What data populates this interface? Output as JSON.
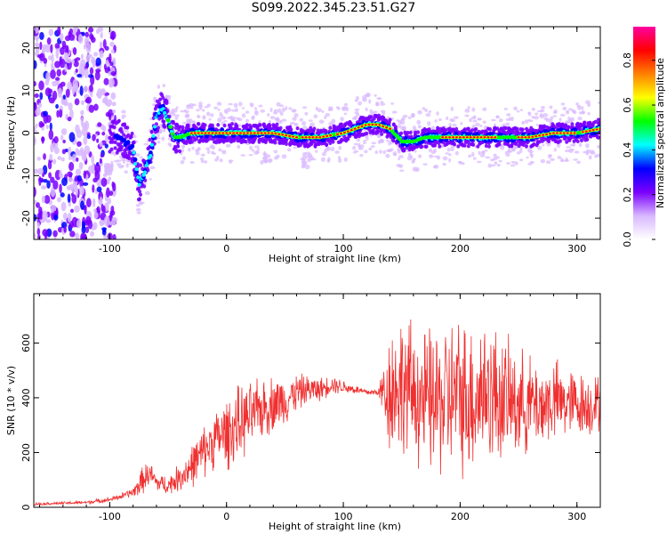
{
  "title": "S099.2022.345.23.51.G27",
  "chart_data": [
    {
      "type": "heatmap",
      "xlabel": "Height of straight line (km)",
      "ylabel": "Frequency (Hz)",
      "xlim": [
        -165,
        320
      ],
      "ylim": [
        -25,
        25
      ],
      "x_ticks": [
        -100,
        0,
        100,
        200,
        300
      ],
      "y_ticks": [
        -20,
        -10,
        0,
        10,
        20
      ],
      "colorbar": {
        "label": "Normalized spectral amplitude",
        "range": [
          0,
          0.95
        ],
        "ticks": [
          "0.0",
          "0.2",
          "0.4",
          "0.6",
          "0.8"
        ],
        "colormap": [
          "#ffffff",
          "#d8b8ff",
          "#7a00ff",
          "#0000ff",
          "#00ffff",
          "#00ff00",
          "#ffff00",
          "#ff8000",
          "#ff0000",
          "#ff00a0"
        ]
      },
      "ridge_frequency": {
        "x": [
          -90,
          -80,
          -75,
          -70,
          -65,
          -60,
          -55,
          -50,
          -45,
          -40,
          -30,
          -20,
          0,
          20,
          40,
          60,
          80,
          100,
          110,
          120,
          130,
          140,
          150,
          160,
          170,
          180,
          190,
          200,
          220,
          240,
          260,
          280,
          300,
          320
        ],
        "y": [
          -1,
          -4,
          -12,
          -9,
          -5,
          4,
          6,
          3,
          -1,
          -1,
          0,
          0,
          0,
          0,
          0,
          -1,
          -1,
          0,
          1,
          2,
          2,
          1,
          -2,
          -2,
          -1,
          -1,
          -1,
          -1,
          -1,
          -1,
          -1,
          0,
          0,
          1
        ]
      }
    },
    {
      "type": "line",
      "xlabel": "Height of straight line (km)",
      "ylabel": "SNR (10 * v/v)",
      "xlim": [
        -165,
        320
      ],
      "ylim": [
        0,
        780
      ],
      "x_ticks": [
        -100,
        0,
        100,
        200,
        300
      ],
      "y_ticks": [
        0,
        200,
        400,
        600
      ],
      "series": [
        {
          "color": "#f03030",
          "x": [
            -165,
            -140,
            -120,
            -100,
            -90,
            -80,
            -75,
            -70,
            -65,
            -60,
            -50,
            -40,
            -30,
            -20,
            -10,
            0,
            10,
            20,
            30,
            40,
            50,
            60,
            70,
            80,
            90,
            100,
            110,
            120,
            130,
            140,
            150,
            160,
            170,
            180,
            190,
            200,
            210,
            220,
            230,
            240,
            250,
            260,
            270,
            280,
            290,
            300,
            310,
            320
          ],
          "y": [
            12,
            15,
            18,
            28,
            40,
            55,
            80,
            110,
            120,
            90,
            80,
            110,
            150,
            200,
            250,
            270,
            300,
            330,
            360,
            380,
            390,
            420,
            430,
            430,
            450,
            440,
            430,
            420,
            420,
            430,
            450,
            420,
            390,
            380,
            400,
            410,
            400,
            430,
            410,
            390,
            380,
            380,
            370,
            390,
            380,
            380,
            370,
            380
          ],
          "spread": [
            6,
            6,
            8,
            10,
            14,
            20,
            50,
            60,
            50,
            40,
            40,
            60,
            90,
            110,
            120,
            150,
            160,
            140,
            130,
            120,
            100,
            80,
            60,
            50,
            40,
            30,
            20,
            15,
            15,
            280,
            290,
            290,
            300,
            320,
            330,
            330,
            330,
            320,
            300,
            250,
            230,
            200,
            180,
            180,
            150,
            140,
            130,
            120
          ]
        }
      ]
    }
  ]
}
